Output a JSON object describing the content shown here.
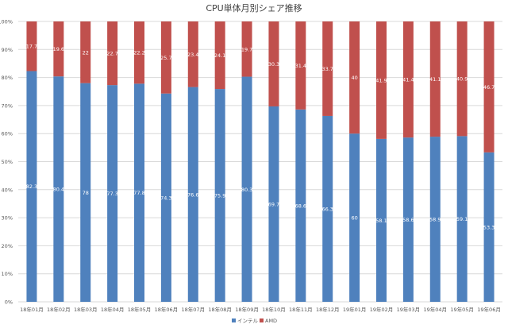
{
  "chart_data": {
    "type": "bar",
    "stacked": "percent",
    "title": "CPU単体月別シェア推移",
    "categories": [
      "18年01月",
      "18年02月",
      "18年03月",
      "18年04月",
      "18年05月",
      "18年06月",
      "18年07月",
      "18年08月",
      "18年09月",
      "18年10月",
      "18年11月",
      "18年12月",
      "19年01月",
      "19年02月",
      "19年03月",
      "19年04月",
      "19年05月",
      "19年06月"
    ],
    "series": [
      {
        "name": "インテル",
        "color": "#4f81bd",
        "values": [
          82.3,
          80.4,
          78,
          77.3,
          77.8,
          74.3,
          76.6,
          75.9,
          80.3,
          69.7,
          68.6,
          66.3,
          60,
          58.1,
          58.6,
          58.9,
          59.1,
          53.3
        ],
        "labels": [
          "82.3",
          "80.4",
          "78",
          "77.3",
          "77.8",
          "74.3",
          "76.6",
          "75.9",
          "80.3",
          "69.7",
          "68.6",
          "66.3",
          "60",
          "58.1",
          "58.6",
          "58.9",
          "59.1",
          "53.3"
        ]
      },
      {
        "name": "AMD",
        "color": "#c0504d",
        "values": [
          17.7,
          19.6,
          22,
          22.7,
          22.2,
          25.7,
          23.4,
          24.1,
          19.7,
          30.3,
          31.4,
          33.7,
          40,
          41.9,
          41.4,
          41.1,
          40.9,
          46.7
        ],
        "labels": [
          "17.7",
          "19.6",
          "22",
          "22.7",
          "22.2",
          "25.7",
          "23.4",
          "24.1",
          "19.7",
          "30.3",
          "31.4",
          "33.7",
          "40",
          "41.9",
          "41.4",
          "41.1",
          "40.9",
          "46.7"
        ]
      }
    ],
    "yaxis": {
      "min": 0,
      "max": 100,
      "step": 10,
      "ticks": [
        "0%",
        "10%",
        "20%",
        "30%",
        "40%",
        "50%",
        "60%",
        "70%",
        "80%",
        "90%",
        "100%"
      ]
    },
    "grid": true,
    "legend": "bottom"
  }
}
